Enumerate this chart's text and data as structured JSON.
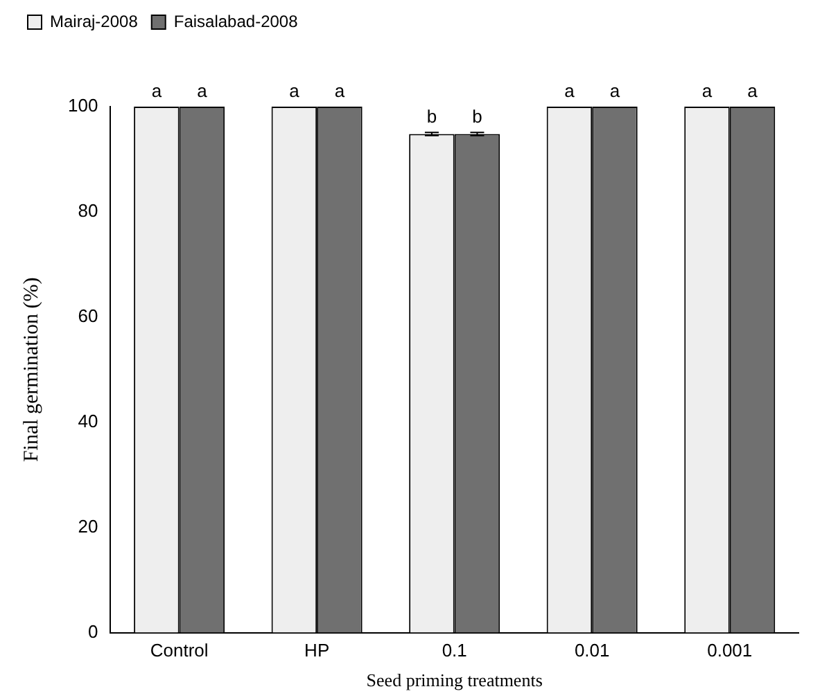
{
  "chart_data": {
    "type": "bar",
    "xlabel": "Seed priming treatments",
    "ylabel": "Final germination (%)",
    "categories": [
      "Control",
      "HP",
      "0.1",
      "0.01",
      "0.001"
    ],
    "series": [
      {
        "name": "Mairaj-2008",
        "color": "#eeeeee",
        "values": [
          100,
          100,
          94.8,
          100,
          100
        ],
        "errors": [
          null,
          null,
          0.3,
          null,
          null
        ],
        "value_labels": [
          "a",
          "a",
          "b",
          "a",
          "a"
        ]
      },
      {
        "name": "Faisalabad-2008",
        "color": "#707070",
        "values": [
          100,
          100,
          94.8,
          100,
          100
        ],
        "errors": [
          null,
          null,
          0.3,
          null,
          null
        ],
        "value_labels": [
          "a",
          "a",
          "b",
          "a",
          "a"
        ]
      }
    ],
    "ylim": [
      0,
      100
    ],
    "yticks": [
      0,
      20,
      40,
      60,
      80,
      100
    ],
    "grid": false,
    "legend": "top left"
  }
}
